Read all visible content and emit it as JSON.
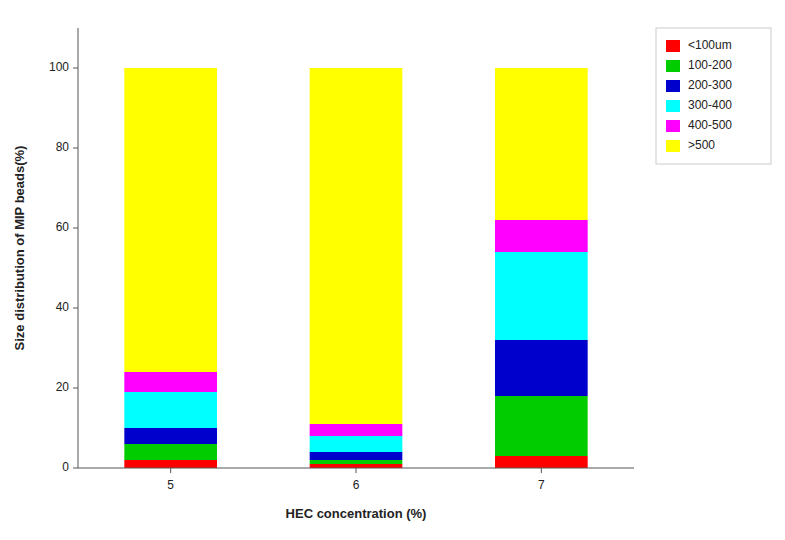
{
  "chart_data": {
    "type": "bar",
    "stacked": true,
    "xlabel": "HEC concentration (%)",
    "ylabel": "Size distribution of MIP beads(%)",
    "categories": [
      "5",
      "6",
      "7"
    ],
    "series": [
      {
        "name": "<100um",
        "color": "#ff0000",
        "values": [
          2,
          1,
          3
        ]
      },
      {
        "name": "100-200",
        "color": "#00cc00",
        "values": [
          4,
          1,
          15
        ]
      },
      {
        "name": "200-300",
        "color": "#0000cc",
        "values": [
          4,
          2,
          14
        ]
      },
      {
        "name": "300-400",
        "color": "#00ffff",
        "values": [
          9,
          4,
          22
        ]
      },
      {
        "name": "400-500",
        "color": "#ff00ff",
        "values": [
          5,
          3,
          8
        ]
      },
      {
        "name": ">500",
        "color": "#ffff00",
        "values": [
          76,
          89,
          38
        ]
      }
    ],
    "ylim": [
      0,
      110
    ],
    "yticks": [
      0,
      20,
      40,
      60,
      80,
      100
    ],
    "grid": false,
    "legend": "upper right"
  }
}
